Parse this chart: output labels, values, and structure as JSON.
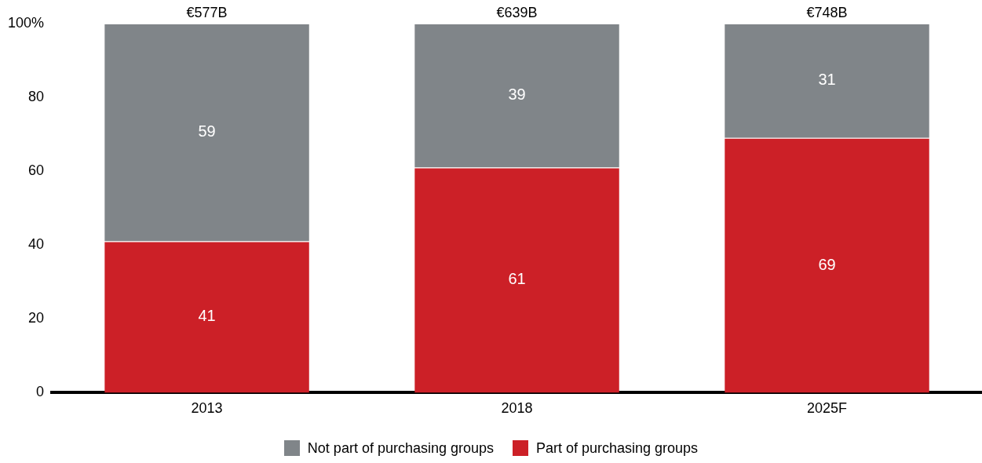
{
  "chart_data": {
    "type": "bar",
    "stacked": true,
    "categories": [
      "2013",
      "2018",
      "2025F"
    ],
    "series": [
      {
        "name": "Part of purchasing groups",
        "color": "#cc2027",
        "values": [
          41,
          61,
          69
        ]
      },
      {
        "name": "Not part of purchasing groups",
        "color": "#808589",
        "values": [
          59,
          39,
          31
        ]
      }
    ],
    "ylim": [
      0,
      100
    ],
    "yticks": [
      0,
      20,
      40,
      60,
      80,
      {
        "value": 100,
        "label": "100%"
      }
    ],
    "annotations": [
      {
        "text": "€577B",
        "x": "2013",
        "y": 100
      },
      {
        "text": "€639B",
        "x": "2018",
        "y": 100
      },
      {
        "text": "€748B",
        "x": "2025F",
        "y": 100
      }
    ],
    "data_labels": true,
    "grid": false,
    "legend": "bottom"
  }
}
